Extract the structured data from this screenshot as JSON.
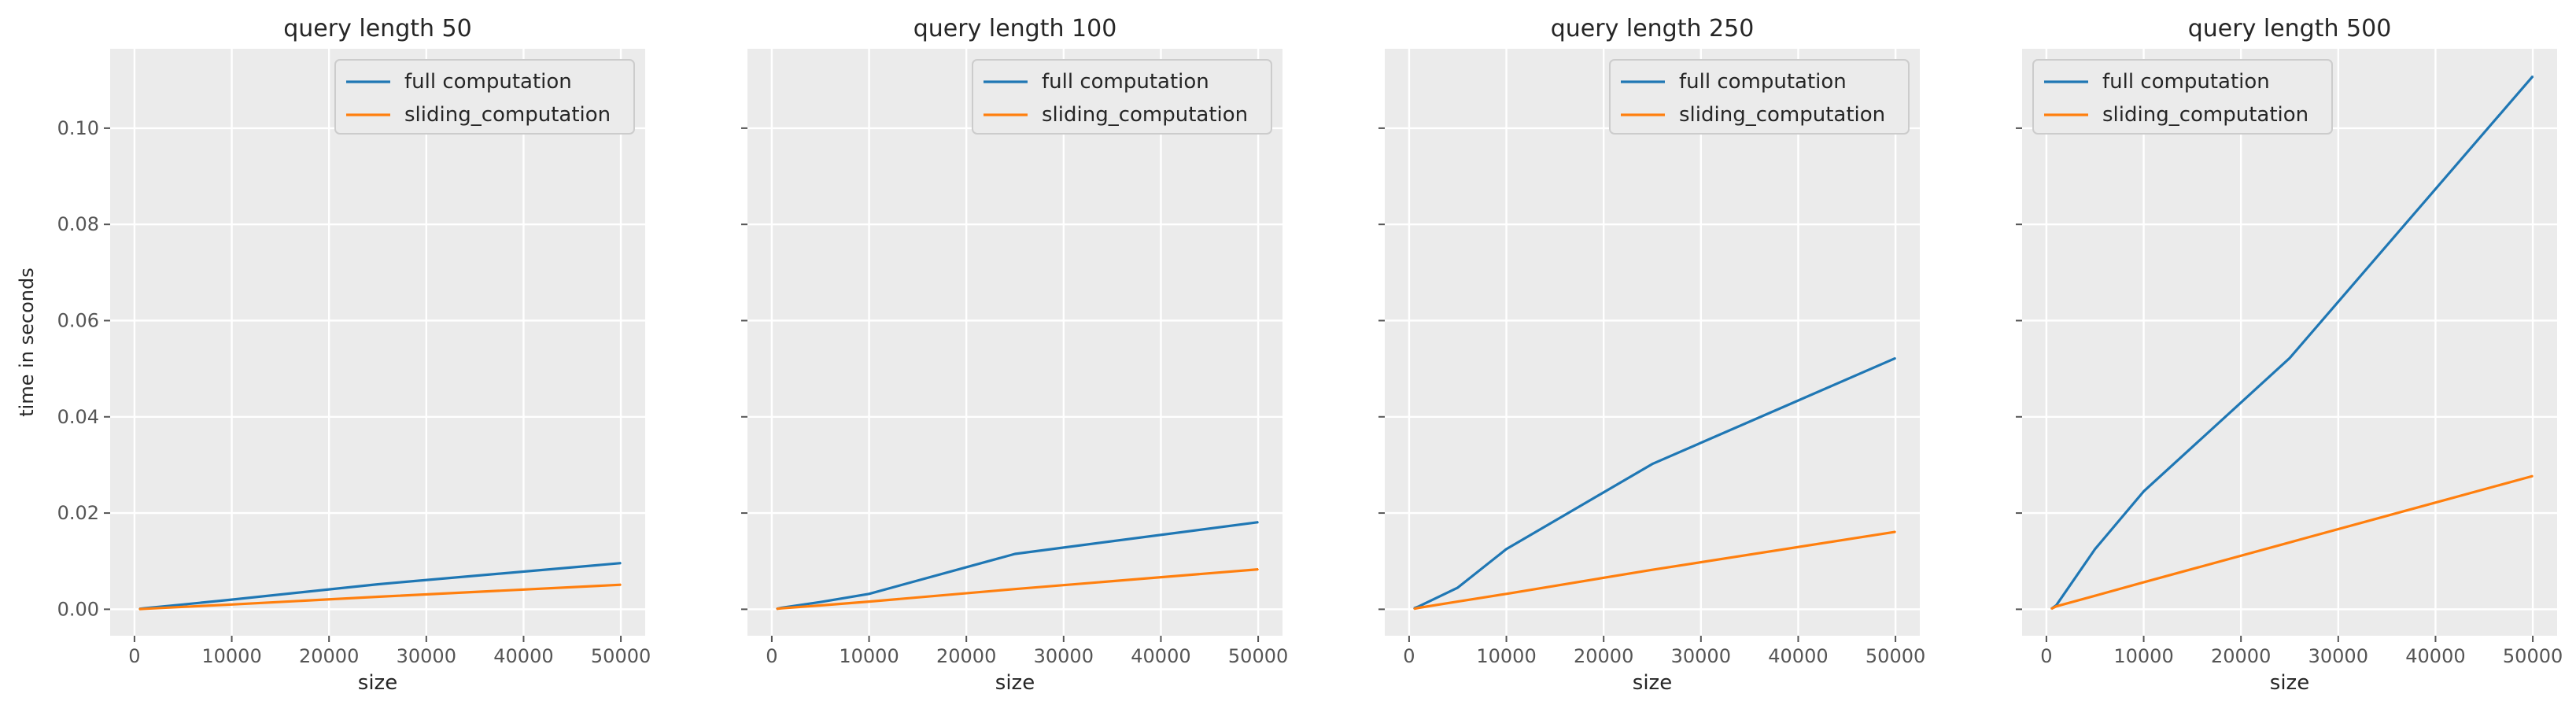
{
  "figure": {
    "ylabel": "time in seconds",
    "colors": {
      "series1": "#1f77b4",
      "series2": "#ff7f0e",
      "panel_bg": "#ebebeb",
      "grid": "#ffffff",
      "text": "#262626",
      "tick": "#555555"
    }
  },
  "chart_data": [
    {
      "type": "line",
      "title": "query length 50",
      "xlabel": "size",
      "ylabel": "time in seconds",
      "xlim": [
        -2500,
        52500
      ],
      "ylim": [
        -0.0055,
        0.1165
      ],
      "xticks": [
        0,
        10000,
        20000,
        30000,
        40000,
        50000
      ],
      "yticks": [
        0.0,
        0.02,
        0.04,
        0.06,
        0.08,
        0.1
      ],
      "grid": true,
      "legend": "upper-right",
      "x": [
        500,
        1000,
        5000,
        10000,
        25000,
        50000
      ],
      "series": [
        {
          "name": "full computation",
          "values": [
            0.0001,
            0.0002,
            0.001,
            0.002,
            0.0052,
            0.0096
          ]
        },
        {
          "name": "sliding_computation",
          "values": [
            5e-05,
            0.0001,
            0.0005,
            0.001,
            0.0026,
            0.0051
          ]
        }
      ]
    },
    {
      "type": "line",
      "title": "query length 100",
      "xlabel": "size",
      "ylabel": "",
      "xlim": [
        -2500,
        52500
      ],
      "ylim": [
        -0.0055,
        0.1165
      ],
      "xticks": [
        0,
        10000,
        20000,
        30000,
        40000,
        50000
      ],
      "yticks": [
        0.0,
        0.02,
        0.04,
        0.06,
        0.08,
        0.1
      ],
      "grid": true,
      "legend": "upper-right",
      "x": [
        500,
        1000,
        5000,
        10000,
        25000,
        50000
      ],
      "series": [
        {
          "name": "full computation",
          "values": [
            0.0001,
            0.0003,
            0.0015,
            0.0032,
            0.0115,
            0.0181
          ]
        },
        {
          "name": "sliding_computation",
          "values": [
            0.0001,
            0.0002,
            0.0008,
            0.0016,
            0.0042,
            0.0083
          ]
        }
      ]
    },
    {
      "type": "line",
      "title": "query length 250",
      "xlabel": "size",
      "ylabel": "",
      "xlim": [
        -2500,
        52500
      ],
      "ylim": [
        -0.0055,
        0.1165
      ],
      "xticks": [
        0,
        10000,
        20000,
        30000,
        40000,
        50000
      ],
      "yticks": [
        0.0,
        0.02,
        0.04,
        0.06,
        0.08,
        0.1
      ],
      "grid": true,
      "legend": "upper-right",
      "x": [
        500,
        1000,
        5000,
        10000,
        25000,
        50000
      ],
      "series": [
        {
          "name": "full computation",
          "values": [
            0.0002,
            0.0006,
            0.0045,
            0.0125,
            0.0302,
            0.0522
          ]
        },
        {
          "name": "sliding_computation",
          "values": [
            0.0001,
            0.0003,
            0.0016,
            0.0032,
            0.0082,
            0.0161
          ]
        }
      ]
    },
    {
      "type": "line",
      "title": "query length 500",
      "xlabel": "size",
      "ylabel": "",
      "xlim": [
        -2500,
        52500
      ],
      "ylim": [
        -0.0055,
        0.1165
      ],
      "xticks": [
        0,
        10000,
        20000,
        30000,
        40000,
        50000
      ],
      "yticks": [
        0.0,
        0.02,
        0.04,
        0.06,
        0.08,
        0.1
      ],
      "grid": true,
      "legend": "upper-left",
      "x": [
        500,
        1000,
        5000,
        10000,
        25000,
        50000
      ],
      "series": [
        {
          "name": "full computation",
          "values": [
            0.0001,
            0.0008,
            0.0125,
            0.0245,
            0.0522,
            0.1108
          ]
        },
        {
          "name": "sliding_computation",
          "values": [
            0.0001,
            0.0006,
            0.0028,
            0.0056,
            0.0139,
            0.0277
          ]
        }
      ]
    }
  ]
}
